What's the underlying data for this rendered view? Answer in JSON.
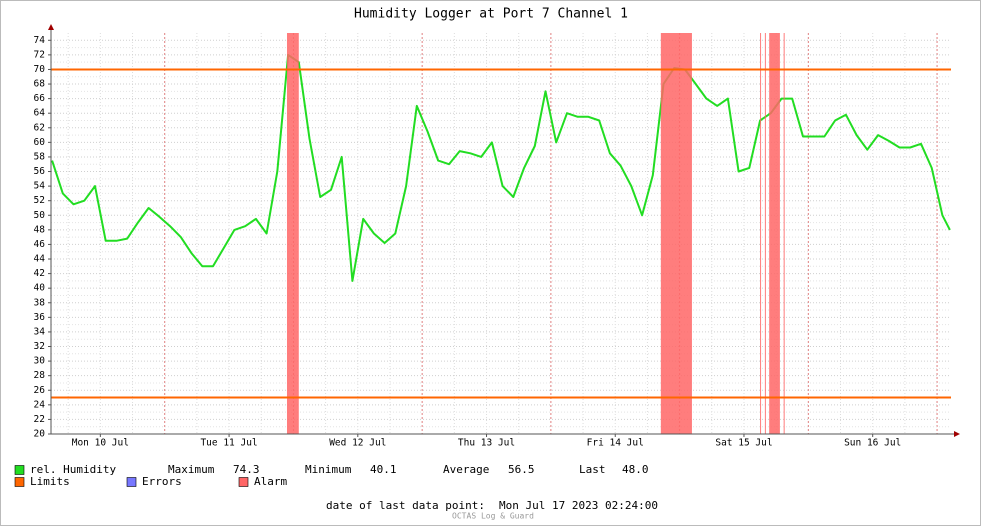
{
  "chart_data": {
    "type": "line",
    "title": "Humidity Logger at Port 7 Channel 1",
    "x": [
      3,
      5,
      7,
      9,
      11,
      13,
      15,
      17,
      19,
      21,
      23,
      25,
      27,
      29,
      31,
      33,
      35,
      37,
      39,
      41,
      43,
      45,
      47,
      49,
      51,
      53,
      55,
      57,
      59,
      61,
      63,
      65,
      67,
      69,
      71,
      73,
      75,
      77,
      79,
      81,
      83,
      85,
      87,
      89,
      91,
      93,
      95,
      97,
      99,
      101,
      103,
      105,
      107,
      109,
      111,
      113,
      115,
      117,
      119,
      121,
      123,
      125,
      127,
      129,
      131,
      133,
      135,
      137,
      139,
      141,
      143,
      145,
      147,
      149,
      151,
      153,
      155,
      157,
      159,
      161,
      163,
      165,
      167,
      169,
      170.4
    ],
    "series": [
      {
        "name": "rel. Humidity",
        "color": "#22dd22",
        "values": [
          57.5,
          53,
          51.5,
          52,
          54,
          46.5,
          46.5,
          46.8,
          49,
          51,
          49.8,
          48.5,
          47,
          44.8,
          43,
          43,
          45.5,
          48,
          48.5,
          49.5,
          47.5,
          56,
          72,
          71,
          60.5,
          52.5,
          53.5,
          58,
          41,
          49.5,
          47.5,
          46.2,
          47.5,
          54,
          65,
          61.5,
          57.5,
          57,
          58.8,
          58.5,
          58,
          60,
          54,
          52.5,
          56.5,
          59.5,
          67,
          60,
          64,
          63.5,
          63.5,
          63,
          58.5,
          56.8,
          54,
          50,
          55.5,
          68,
          70.2,
          70,
          68,
          66,
          65,
          66,
          56,
          56.5,
          63,
          64,
          66,
          66,
          60.8,
          60.8,
          60.8,
          63,
          63.8,
          61,
          59,
          61,
          60.2,
          59.3,
          59.3,
          59.8,
          56.5,
          50,
          48
        ]
      }
    ],
    "limits": {
      "name": "Limits",
      "color": "#ff6600",
      "values": [
        25,
        70
      ]
    },
    "errors": {
      "name": "Errors",
      "color": "#7777ff"
    },
    "alarms": {
      "name": "Alarm",
      "color": "#ff6666",
      "spans": [
        [
          46.8,
          49.0
        ],
        [
          116.5,
          122.3
        ],
        [
          135.0,
          135.15
        ],
        [
          135.9,
          136.05
        ],
        [
          136.7,
          138.7
        ],
        [
          139.4,
          139.55
        ]
      ]
    },
    "stats": [
      {
        "name": "Maximum",
        "value": 74.3
      },
      {
        "name": "Minimum",
        "value": 40.1
      },
      {
        "name": "Average",
        "value": 56.5
      },
      {
        "name": "Last",
        "value": 48,
        "label": "48.0"
      }
    ],
    "footer": {
      "label": "date of last data point:",
      "value": "Mon Jul 17 2023 02:24:00"
    },
    "watermark": "OCTAS Log & Guard",
    "xlim": [
      2.8,
      170.6
    ],
    "ylim": [
      20,
      75
    ],
    "xticks": [
      {
        "value": 12,
        "label": "Mon 10 Jul"
      },
      {
        "value": 36,
        "label": "Tue 11 Jul"
      },
      {
        "value": 60,
        "label": "Wed 12 Jul"
      },
      {
        "value": 84,
        "label": "Thu 13 Jul"
      },
      {
        "value": 108,
        "label": "Fri 14 Jul"
      },
      {
        "value": 132,
        "label": "Sat 15 Jul"
      },
      {
        "value": 156,
        "label": "Sun 16 Jul"
      }
    ],
    "yticks": [
      20,
      22,
      24,
      26,
      28,
      30,
      32,
      34,
      36,
      38,
      40,
      42,
      44,
      46,
      48,
      50,
      52,
      54,
      56,
      58,
      60,
      62,
      64,
      66,
      68,
      70,
      72,
      74
    ],
    "grid": true
  }
}
